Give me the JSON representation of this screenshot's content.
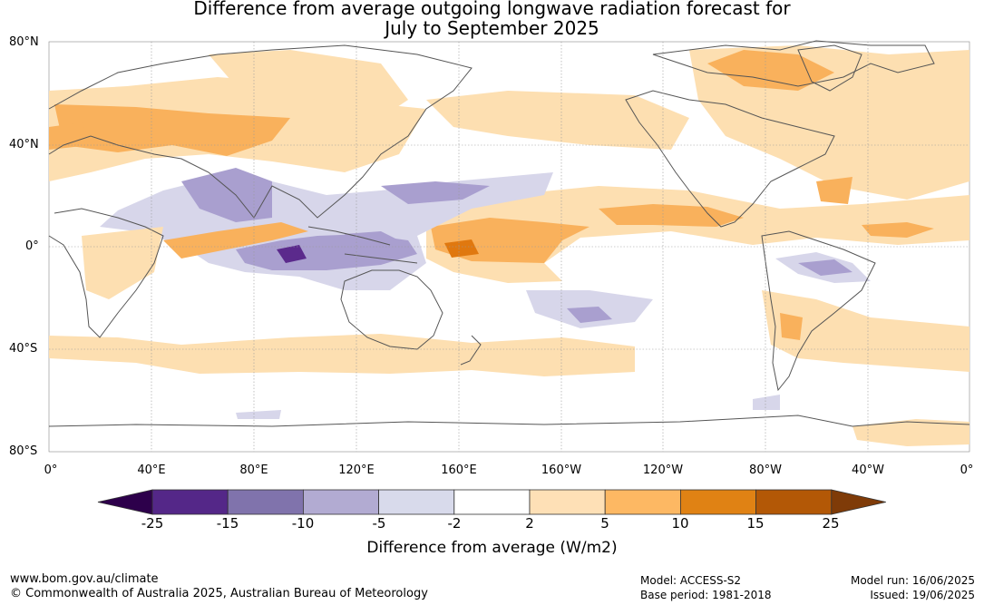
{
  "title_line1": "Difference from average outgoing longwave radiation forecast for",
  "title_line2": "July to September 2025",
  "map": {
    "lat_labels": [
      "80°N",
      "40°N",
      "0°",
      "40°S",
      "80°S"
    ],
    "lon_labels": [
      "0°",
      "40°E",
      "80°E",
      "120°E",
      "160°E",
      "160°W",
      "120°W",
      "80°W",
      "40°W",
      "0°"
    ],
    "anomaly_colors": {
      "strong_negative": "#5b2a8c",
      "negative": "#a99fcf",
      "weak_negative": "#d7d6ea",
      "weak_positive": "#fddfb1",
      "positive": "#f9b15c",
      "strong_positive": "#e0780f"
    }
  },
  "colorbar": {
    "colors": [
      "#2d004b",
      "#542788",
      "#8073ac",
      "#b2abd2",
      "#d8daeb",
      "#ffffff",
      "#fee0b6",
      "#fdb863",
      "#e08214",
      "#b35806",
      "#7f3b08"
    ],
    "tick_labels": [
      "-25",
      "-15",
      "-10",
      "-5",
      "-2",
      "2",
      "5",
      "10",
      "15",
      "25"
    ],
    "label": "Difference from average (W/m2)"
  },
  "footer": {
    "website": "www.bom.gov.au/climate",
    "copyright": "© Commonwealth of Australia 2025, Australian Bureau of Meteorology",
    "model": "Model: ACCESS-S2",
    "base_period": "Base period: 1981-2018",
    "model_run": "Model run: 16/06/2025",
    "issued": "Issued: 19/06/2025"
  }
}
